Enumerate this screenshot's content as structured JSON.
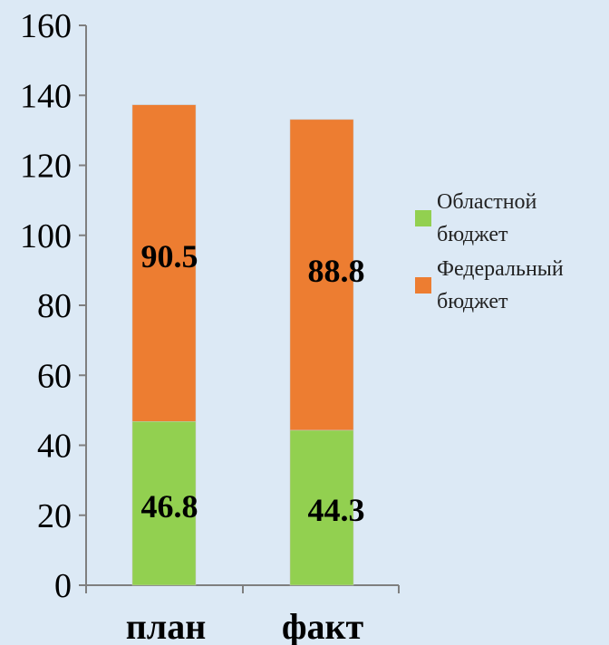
{
  "chart_data": {
    "type": "bar",
    "stacked": true,
    "categories": [
      "план",
      "факт"
    ],
    "series": [
      {
        "name": "Областной бюджет",
        "values": [
          46.8,
          44.3
        ],
        "color": "#92d050"
      },
      {
        "name": "Федеральный бюджет",
        "values": [
          90.5,
          88.8
        ],
        "color": "#ed7d31"
      }
    ],
    "data_labels": [
      [
        "46.8",
        "44.3"
      ],
      [
        "90.5",
        "88.8"
      ]
    ],
    "ylim": [
      0,
      160
    ],
    "yticks": [
      "0",
      "20",
      "40",
      "60",
      "80",
      "100",
      "120",
      "140",
      "160"
    ],
    "grid": false,
    "legend_position": "right",
    "legend": [
      {
        "line1": "Областной",
        "line2": "бюджет"
      },
      {
        "line1": "Федеральный",
        "line2": "бюджет"
      }
    ]
  }
}
